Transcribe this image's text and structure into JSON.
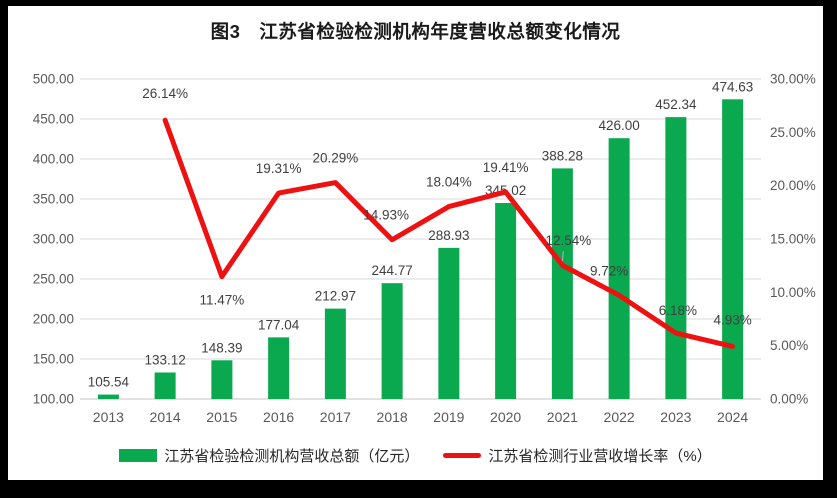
{
  "chart_data": {
    "type": "bar",
    "subtype": "combo-bar-line-dual-axis",
    "title": "图3　江苏省检验检测机构年度营收总额变化情况",
    "categories": [
      "2013",
      "2014",
      "2015",
      "2016",
      "2017",
      "2018",
      "2019",
      "2020",
      "2021",
      "2022",
      "2023",
      "2024"
    ],
    "series": [
      {
        "type": "bar",
        "name": "江苏省检验检测机构营收总额（亿元）",
        "axis": "left",
        "color": "#0aa84f",
        "values": [
          105.54,
          133.12,
          148.39,
          177.04,
          212.97,
          244.77,
          288.93,
          345.02,
          388.28,
          426.0,
          452.34,
          474.63
        ],
        "labels": [
          "105.54",
          "133.12",
          "148.39",
          "177.04",
          "212.97",
          "244.77",
          "288.93",
          "345.02",
          "388.28",
          "426.00",
          "452.34",
          "474.63"
        ]
      },
      {
        "type": "line",
        "name": "江苏省检测行业营收增长率（%）",
        "axis": "right",
        "color": "#ee1111",
        "values": [
          null,
          26.14,
          11.47,
          19.31,
          20.29,
          14.93,
          18.04,
          19.41,
          12.54,
          9.72,
          6.18,
          4.93
        ],
        "labels": [
          "",
          "26.14%",
          "11.47%",
          "19.31%",
          "20.29%",
          "14.93%",
          "18.04%",
          "19.41%",
          "12.54%",
          "9.72%",
          "6.18%",
          "4.93%"
        ]
      }
    ],
    "left_axis": {
      "min": 100,
      "max": 500,
      "step": 50,
      "tick_labels": [
        "100.00",
        "150.00",
        "200.00",
        "250.00",
        "300.00",
        "350.00",
        "400.00",
        "450.00",
        "500.00"
      ]
    },
    "right_axis": {
      "min": 0,
      "max": 30,
      "step": 5,
      "tick_labels": [
        "0.00%",
        "5.00%",
        "10.00%",
        "15.00%",
        "20.00%",
        "25.00%",
        "30.00%"
      ]
    },
    "grid": true,
    "legend_position": "bottom",
    "colors": {
      "bar": "#0aa84f",
      "line": "#ee1111",
      "gridline": "#d9d9d9",
      "baseline": "#c6c6c6",
      "axis_text": "#595959",
      "data_label_text": "#3f3f3f",
      "title_text": "#1a1a1a",
      "leader_line": "#a6a6a6",
      "background": "#ffffff",
      "frame": "#000000"
    }
  }
}
